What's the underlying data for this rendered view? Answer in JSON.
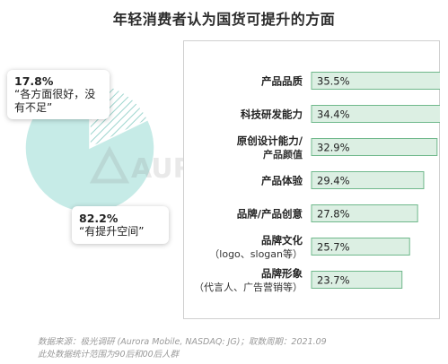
{
  "title": "年轻消费者认为国货可提升的方面",
  "pie": {
    "slices": [
      {
        "percent_label": "17.8%",
        "label": "“各方面很好，没有不足”",
        "value": 17.8
      },
      {
        "percent_label": "82.2%",
        "label": "“有提升空间”",
        "value": 82.2
      }
    ]
  },
  "watermark": "AURORA 极光",
  "footer": {
    "line1": "数据来源：极光调研 (Aurora Mobile, NASDAQ: JG)；取数周期：2021.09",
    "line2": "此处数据统计范围为90后和00后人群"
  },
  "colors": {
    "bar_fill": "#dcefe3",
    "bar_stroke": "#6fb88b",
    "pie_main": "#c6ebe7",
    "pie_hatch": "#9fd6cf"
  },
  "chart_data": [
    {
      "type": "pie",
      "title": "",
      "labels": [
        "“各方面很好，没有不足”",
        "“有提升空间”"
      ],
      "values": [
        17.8,
        82.2
      ]
    },
    {
      "type": "bar",
      "orientation": "horizontal",
      "title": "年轻消费者认为国货可提升的方面",
      "categories": [
        {
          "main": "产品品质",
          "sub": ""
        },
        {
          "main": "科技研发能力",
          "sub": ""
        },
        {
          "main": "原创设计能力/",
          "sub": "产品颜值"
        },
        {
          "main": "产品体验",
          "sub": ""
        },
        {
          "main": "品牌/产品创意",
          "sub": ""
        },
        {
          "main": "品牌文化",
          "sub": "（logo、slogan等）"
        },
        {
          "main": "品牌形象",
          "sub": "（代言人、广告营销等）"
        }
      ],
      "values": [
        35.5,
        34.4,
        32.9,
        29.4,
        27.8,
        25.7,
        23.7
      ],
      "value_labels": [
        "35.5%",
        "34.4%",
        "32.9%",
        "29.4%",
        "27.8%",
        "25.7%",
        "23.7%"
      ],
      "xlim": [
        0,
        40
      ],
      "grid": false
    }
  ]
}
